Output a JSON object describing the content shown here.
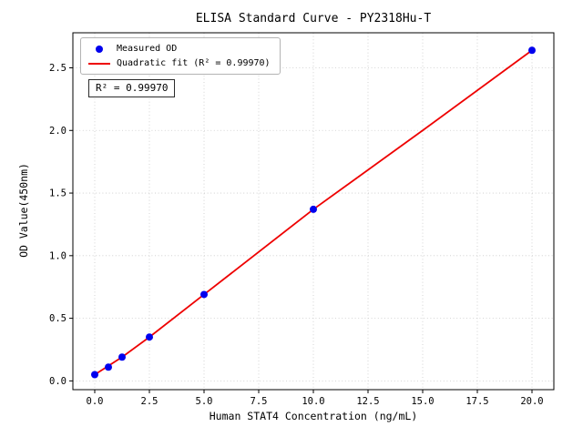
{
  "chart_data": {
    "type": "scatter",
    "title": "ELISA Standard Curve - PY2318Hu-T",
    "xlabel": "Human STAT4 Concentration (ng/mL)",
    "ylabel": "OD Value(450nm)",
    "xlim": [
      -1,
      21
    ],
    "ylim": [
      -0.07,
      2.78
    ],
    "xticks": [
      0,
      2.5,
      5,
      7.5,
      10,
      12.5,
      15,
      17.5,
      20
    ],
    "yticks": [
      0,
      0.5,
      1,
      1.5,
      2,
      2.5
    ],
    "grid": true,
    "grid_style": "dotted",
    "legend_position": "upper left",
    "annotation": "R² = 0.99970",
    "series": [
      {
        "name": "Measured OD",
        "kind": "scatter",
        "color": "#0000ee",
        "x": [
          0,
          0.625,
          1.25,
          2.5,
          5,
          10,
          20
        ],
        "y": [
          0.05,
          0.11,
          0.19,
          0.35,
          0.69,
          1.37,
          2.64
        ]
      },
      {
        "name": "Quadratic fit (R² = 0.99970)",
        "kind": "line",
        "color": "#ee0000",
        "x": [
          0,
          0.625,
          1.25,
          2.5,
          5,
          10,
          15,
          20
        ],
        "y": [
          0.05,
          0.12,
          0.19,
          0.35,
          0.69,
          1.37,
          2.0,
          2.64
        ]
      }
    ]
  }
}
